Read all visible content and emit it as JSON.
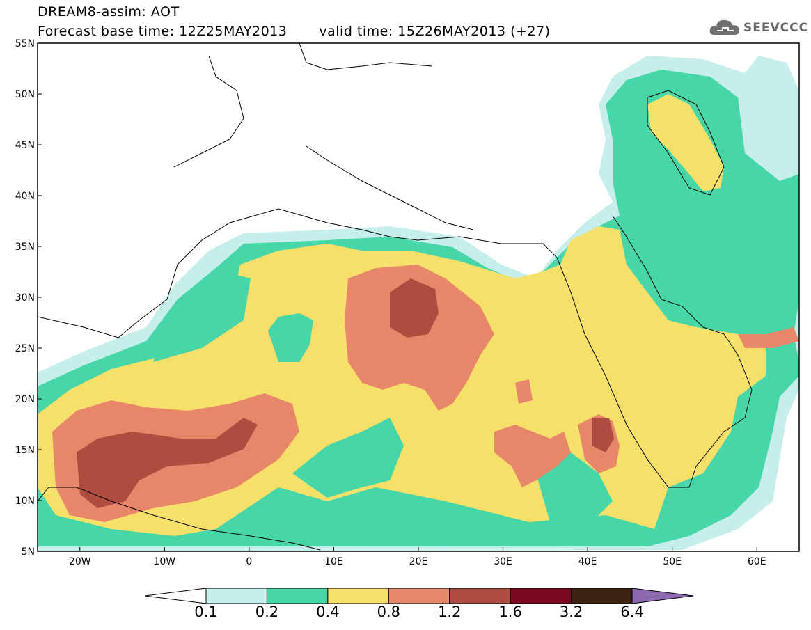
{
  "header": {
    "title": "DREAM8-assim: AOT",
    "base_time": "Forecast base time: 12Z25MAY2013",
    "valid_time": "valid time: 15Z26MAY2013 (+27)",
    "logo_text": "SEEVCCC"
  },
  "map": {
    "lon_range": [
      -25,
      65
    ],
    "lat_range": [
      5,
      55
    ],
    "lat_ticks": [
      "55N",
      "50N",
      "45N",
      "40N",
      "35N",
      "30N",
      "25N",
      "20N",
      "15N",
      "10N",
      "5N"
    ],
    "lon_ticks": [
      "20W",
      "10W",
      "0",
      "10E",
      "20E",
      "30E",
      "40E",
      "50E",
      "60E"
    ]
  },
  "colorbar": {
    "levels": [
      "0.1",
      "0.2",
      "0.4",
      "0.8",
      "1.2",
      "1.6",
      "3.2",
      "6.4"
    ],
    "colors": [
      "#c6eeea",
      "#46d6a8",
      "#f7e06a",
      "#e8866a",
      "#ae4c40",
      "#7a0a22",
      "#3a2412",
      "#8d6ab0"
    ]
  }
}
